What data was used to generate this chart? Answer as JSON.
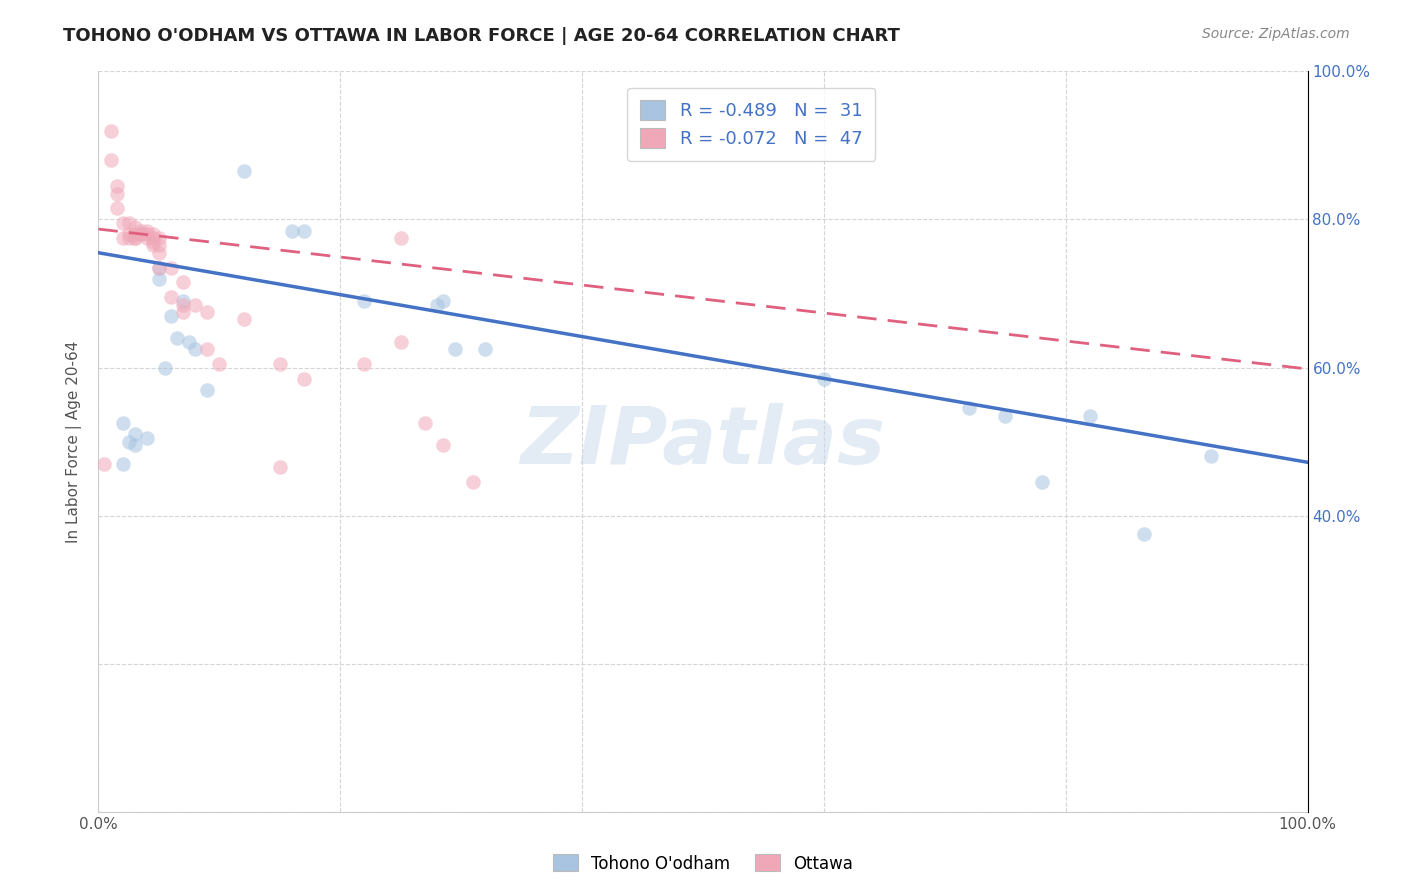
{
  "title": "TOHONO O'ODHAM VS OTTAWA IN LABOR FORCE | AGE 20-64 CORRELATION CHART",
  "source": "Source: ZipAtlas.com",
  "ylabel": "In Labor Force | Age 20-64",
  "xlim": [
    0.0,
    1.0
  ],
  "ylim": [
    0.0,
    1.0
  ],
  "xticks": [
    0.0,
    0.2,
    0.4,
    0.6,
    0.8,
    1.0
  ],
  "yticks": [
    0.0,
    0.2,
    0.4,
    0.6,
    0.8,
    1.0
  ],
  "xticklabels": [
    "0.0%",
    "",
    "",
    "",
    "",
    "100.0%"
  ],
  "watermark": "ZIPatlas",
  "blue_color": "#a8c4e0",
  "pink_color": "#f0a8b8",
  "blue_line_color": "#4472c4",
  "pink_line_color": "#e06080",
  "legend_R_blue": "R = -0.489",
  "legend_N_blue": "N =  31",
  "legend_R_pink": "R = -0.072",
  "legend_N_pink": "N =  47",
  "blue_label": "Tohono O'odham",
  "pink_label": "Ottawa",
  "blue_scatter_x": [
    0.02,
    0.025,
    0.02,
    0.03,
    0.03,
    0.035,
    0.04,
    0.05,
    0.05,
    0.055,
    0.06,
    0.065,
    0.07,
    0.075,
    0.08,
    0.09,
    0.12,
    0.16,
    0.17,
    0.22,
    0.28,
    0.285,
    0.295,
    0.32,
    0.6,
    0.72,
    0.75,
    0.78,
    0.82,
    0.865,
    0.92
  ],
  "blue_scatter_y": [
    0.47,
    0.5,
    0.525,
    0.495,
    0.51,
    0.78,
    0.505,
    0.735,
    0.72,
    0.6,
    0.67,
    0.64,
    0.69,
    0.635,
    0.625,
    0.57,
    0.865,
    0.785,
    0.785,
    0.69,
    0.685,
    0.69,
    0.625,
    0.625,
    0.585,
    0.545,
    0.535,
    0.445,
    0.535,
    0.375,
    0.48
  ],
  "pink_scatter_x": [
    0.005,
    0.01,
    0.01,
    0.015,
    0.015,
    0.015,
    0.02,
    0.02,
    0.025,
    0.025,
    0.025,
    0.03,
    0.03,
    0.03,
    0.03,
    0.035,
    0.035,
    0.04,
    0.04,
    0.04,
    0.045,
    0.045,
    0.045,
    0.045,
    0.05,
    0.05,
    0.05,
    0.05,
    0.06,
    0.06,
    0.07,
    0.07,
    0.07,
    0.08,
    0.09,
    0.09,
    0.1,
    0.12,
    0.15,
    0.15,
    0.17,
    0.22,
    0.25,
    0.25,
    0.27,
    0.285,
    0.31
  ],
  "pink_scatter_y": [
    0.47,
    0.92,
    0.88,
    0.845,
    0.815,
    0.835,
    0.795,
    0.775,
    0.795,
    0.78,
    0.775,
    0.79,
    0.775,
    0.78,
    0.775,
    0.785,
    0.78,
    0.785,
    0.78,
    0.775,
    0.775,
    0.765,
    0.78,
    0.77,
    0.775,
    0.765,
    0.755,
    0.735,
    0.735,
    0.695,
    0.715,
    0.685,
    0.675,
    0.685,
    0.675,
    0.625,
    0.605,
    0.665,
    0.605,
    0.465,
    0.585,
    0.605,
    0.775,
    0.635,
    0.525,
    0.495,
    0.445
  ],
  "blue_line_y_start": 0.755,
  "blue_line_y_end": 0.472,
  "pink_line_y_start": 0.787,
  "pink_line_y_end": 0.598,
  "marker_size": 110,
  "marker_alpha": 0.55,
  "grid_color": "#d5d5d5",
  "background_color": "#ffffff",
  "right_yticks": [
    0.4,
    0.6,
    0.8,
    1.0
  ],
  "right_yticklabels": [
    "40.0%",
    "60.0%",
    "80.0%",
    "100.0%"
  ]
}
